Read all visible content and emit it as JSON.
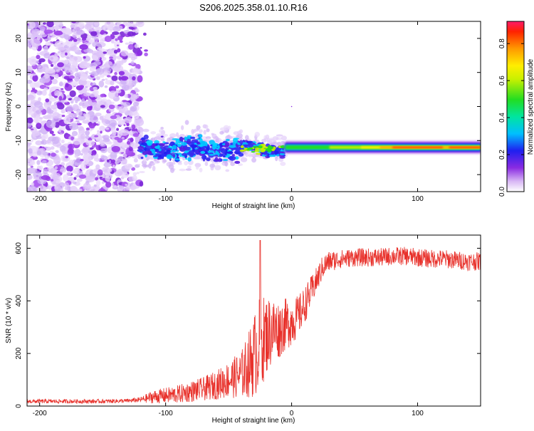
{
  "title": "S206.2025.358.01.10.R16",
  "chart_data": [
    {
      "type": "heatmap",
      "name": "spectrogram",
      "xlabel": "Height of straight line (km)",
      "ylabel": "Frequency (Hz)",
      "xlim": [
        -210,
        150
      ],
      "ylim": [
        -25,
        25
      ],
      "xticks": [
        -200,
        -100,
        0,
        100
      ],
      "yticks": [
        20,
        10,
        0,
        -10,
        -20
      ],
      "colorbar": {
        "label": "Normalized spectral amplitude",
        "range": [
          0,
          0.92
        ],
        "ticks": [
          0.0,
          0.2,
          0.4,
          0.6,
          0.8
        ]
      },
      "features": [
        {
          "desc": "scattered low amplitude noise",
          "x_range": [
            -210,
            -120
          ],
          "y_range": [
            -25,
            25
          ]
        },
        {
          "desc": "noisy signal band",
          "x_range": [
            -120,
            -5
          ],
          "center_freq": -12.5
        },
        {
          "desc": "strong narrow carrier band",
          "x_range": [
            -5,
            150
          ],
          "center_freq": -12,
          "peak_amplitude": 0.9,
          "peak_x": 100
        }
      ]
    },
    {
      "type": "line",
      "name": "snr",
      "xlabel": "Height of straight line (km)",
      "ylabel": "SNR (10 * v/v)",
      "xlim": [
        -210,
        150
      ],
      "ylim": [
        0,
        650
      ],
      "xticks": [
        -200,
        -100,
        0,
        100
      ],
      "yticks": [
        0,
        200,
        400,
        600
      ],
      "series": [
        {
          "name": "SNR",
          "color": "#e8312b",
          "x": [
            -210,
            -180,
            -150,
            -130,
            -120,
            -110,
            -100,
            -90,
            -80,
            -70,
            -60,
            -50,
            -40,
            -35,
            -30,
            -25,
            -20,
            -15,
            -10,
            -5,
            0,
            5,
            10,
            15,
            20,
            25,
            30,
            40,
            50,
            60,
            70,
            80,
            90,
            100,
            110,
            120,
            130,
            140,
            150
          ],
          "mean": [
            18,
            18,
            18,
            20,
            24,
            35,
            40,
            45,
            55,
            65,
            80,
            100,
            120,
            150,
            190,
            240,
            270,
            290,
            290,
            310,
            320,
            340,
            380,
            430,
            480,
            530,
            550,
            560,
            565,
            565,
            565,
            570,
            570,
            565,
            560,
            560,
            555,
            550,
            550
          ],
          "noise": [
            8,
            8,
            8,
            8,
            10,
            25,
            30,
            35,
            40,
            45,
            55,
            70,
            90,
            120,
            160,
            180,
            150,
            130,
            110,
            100,
            90,
            80,
            70,
            60,
            50,
            45,
            40,
            35,
            35,
            35,
            35,
            35,
            35,
            35,
            35,
            35,
            35,
            35,
            35
          ],
          "peak": {
            "x": -25,
            "y": 630
          }
        }
      ]
    }
  ]
}
